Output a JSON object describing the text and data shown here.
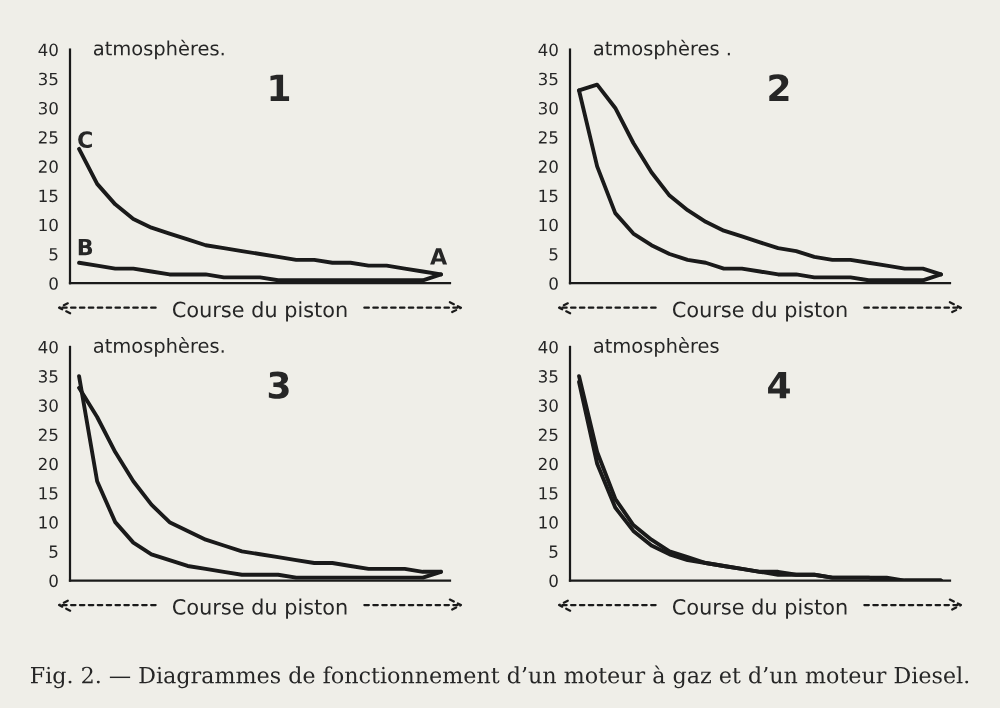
{
  "chart_data": [
    {
      "type": "line",
      "title": "1",
      "ylabel": "atmosphères.",
      "xlabel": "Course du piston",
      "categories": [
        null,
        null,
        null,
        null,
        null,
        null,
        null,
        null,
        null,
        null,
        null,
        null,
        null,
        null,
        null,
        null,
        null,
        null,
        null,
        null,
        null
      ],
      "ylim": [
        0,
        40
      ],
      "yticks": [
        0,
        5,
        10,
        15,
        20,
        25,
        30,
        35,
        40
      ],
      "grid": false,
      "annotations": [
        "C",
        "B",
        "A"
      ],
      "series": [
        {
          "color": "#1a1a1a",
          "values": [
            23,
            17,
            13.5,
            11,
            9.5,
            8.5,
            7.5,
            6.5,
            6,
            5.5,
            5,
            4.5,
            4,
            4,
            3.5,
            3.5,
            3,
            3,
            2.5,
            2,
            1.5
          ]
        },
        {
          "color": "#1a1a1a",
          "values": [
            3.5,
            3,
            2.5,
            2.5,
            2,
            1.5,
            1.5,
            1.5,
            1,
            1,
            1,
            0.5,
            0.5,
            0.5,
            0.5,
            0.5,
            0.5,
            0.5,
            0.5,
            0.5,
            1.5
          ]
        }
      ]
    },
    {
      "type": "line",
      "title": "2",
      "ylabel": "atmosphères .",
      "xlabel": "Course du piston",
      "categories": [
        null,
        null,
        null,
        null,
        null,
        null,
        null,
        null,
        null,
        null,
        null,
        null,
        null,
        null,
        null,
        null,
        null,
        null,
        null,
        null,
        null
      ],
      "ylim": [
        0,
        40
      ],
      "yticks": [
        0,
        5,
        10,
        15,
        20,
        25,
        30,
        35,
        40
      ],
      "grid": false,
      "series": [
        {
          "color": "#1a1a1a",
          "values": [
            33,
            34,
            30,
            24,
            19,
            15,
            12.5,
            10.5,
            9,
            8,
            7,
            6,
            5.5,
            4.5,
            4,
            4,
            3.5,
            3,
            2.5,
            2.5,
            1.5
          ]
        },
        {
          "color": "#1a1a1a",
          "values": [
            33,
            20,
            12,
            8.5,
            6.5,
            5,
            4,
            3.5,
            2.5,
            2.5,
            2,
            1.5,
            1.5,
            1,
            1,
            1,
            0.5,
            0.5,
            0.5,
            0.5,
            1.5
          ]
        }
      ]
    },
    {
      "type": "line",
      "title": "3",
      "ylabel": "atmosphères.",
      "xlabel": "Course du piston",
      "categories": [
        null,
        null,
        null,
        null,
        null,
        null,
        null,
        null,
        null,
        null,
        null,
        null,
        null,
        null,
        null,
        null,
        null,
        null,
        null,
        null,
        null
      ],
      "ylim": [
        0,
        40
      ],
      "yticks": [
        0,
        5,
        10,
        15,
        20,
        25,
        30,
        35,
        40
      ],
      "grid": false,
      "series": [
        {
          "color": "#1a1a1a",
          "values": [
            33,
            28,
            22,
            17,
            13,
            10,
            8.5,
            7,
            6,
            5,
            4.5,
            4,
            3.5,
            3,
            3,
            2.5,
            2,
            2,
            2,
            1.5,
            1.5
          ]
        },
        {
          "color": "#1a1a1a",
          "values": [
            35,
            17,
            10,
            6.5,
            4.5,
            3.5,
            2.5,
            2,
            1.5,
            1,
            1,
            1,
            0.5,
            0.5,
            0.5,
            0.5,
            0.5,
            0.5,
            0.5,
            0.5,
            1.5
          ]
        }
      ]
    },
    {
      "type": "line",
      "title": "4",
      "ylabel": "atmosphères",
      "xlabel": "Course du piston",
      "categories": [
        null,
        null,
        null,
        null,
        null,
        null,
        null,
        null,
        null,
        null,
        null,
        null,
        null,
        null,
        null,
        null,
        null,
        null,
        null,
        null,
        null
      ],
      "ylim": [
        0,
        40
      ],
      "yticks": [
        0,
        5,
        10,
        15,
        20,
        25,
        30,
        35,
        40
      ],
      "grid": false,
      "annotations": [
        "Fig. 2. — Diagrammes de fonctionnement d’un moteur à gaz et d’un moteur Diesel."
      ],
      "series": [
        {
          "color": "#1a1a1a",
          "values": [
            35,
            22,
            14,
            9.5,
            7,
            5,
            4,
            3,
            2.5,
            2,
            1.5,
            1.5,
            1,
            1,
            0.5,
            0.5,
            0.5,
            0.5,
            0,
            0,
            0
          ]
        },
        {
          "color": "#1a1a1a",
          "values": [
            34,
            20,
            12.5,
            8.5,
            6,
            4.5,
            3.5,
            3,
            2.5,
            2,
            1.5,
            1,
            1,
            1,
            0.5,
            0.5,
            0.5,
            0,
            0,
            0,
            0
          ]
        }
      ]
    }
  ]
}
